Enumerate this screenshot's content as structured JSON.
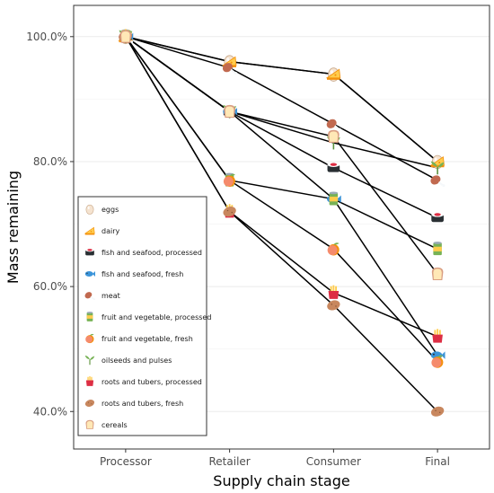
{
  "chart_data": {
    "type": "line",
    "xlabel": "Supply chain stage",
    "ylabel": "Mass remaining",
    "x": [
      "Processor",
      "Retailer",
      "Consumer",
      "Final"
    ],
    "ylim": [
      34,
      105
    ],
    "y_ticks": [
      40,
      60,
      80,
      100
    ],
    "y_tick_labels": [
      "40.0%",
      "60.0%",
      "80.0%",
      "100.0%"
    ],
    "grid": true,
    "legend_position": "inside-left",
    "series": [
      {
        "name": "eggs",
        "icon": "egg-icon",
        "color": "#f3dcc6",
        "values": [
          100,
          96,
          94,
          80
        ]
      },
      {
        "name": "dairy",
        "icon": "cheese-icon",
        "color": "#f9b43b",
        "values": [
          100,
          96,
          94,
          80
        ]
      },
      {
        "name": "fish and seafood, processed",
        "icon": "sushi-icon",
        "color": "#c9253b",
        "values": [
          100,
          88,
          79,
          71
        ]
      },
      {
        "name": "fish and seafood, fresh",
        "icon": "fish-icon",
        "color": "#3b94d9",
        "values": [
          100,
          88,
          74,
          49
        ]
      },
      {
        "name": "meat",
        "icon": "drumstick-icon",
        "color": "#b35a2f",
        "values": [
          100,
          95,
          86,
          77
        ]
      },
      {
        "name": "fruit and vegetable, processed",
        "icon": "canned-food-icon",
        "color": "#5b9b2f",
        "values": [
          100,
          77,
          74,
          66
        ]
      },
      {
        "name": "fruit and vegetable, fresh",
        "icon": "peach-icon",
        "color": "#f58b6c",
        "values": [
          100,
          77,
          66,
          48
        ]
      },
      {
        "name": "oilseeds and pulses",
        "icon": "seedling-icon",
        "color": "#77b255",
        "values": [
          100,
          88,
          83,
          79
        ]
      },
      {
        "name": "roots and tubers, processed",
        "icon": "fries-icon",
        "color": "#dd2e44",
        "values": [
          100,
          72,
          59,
          52
        ]
      },
      {
        "name": "roots and tubers, fresh",
        "icon": "potato-icon",
        "color": "#c8875e",
        "values": [
          100,
          72,
          57,
          40
        ]
      },
      {
        "name": "cereals",
        "icon": "bread-icon",
        "color": "#e8c38f",
        "values": [
          100,
          88,
          84,
          62
        ]
      }
    ]
  }
}
